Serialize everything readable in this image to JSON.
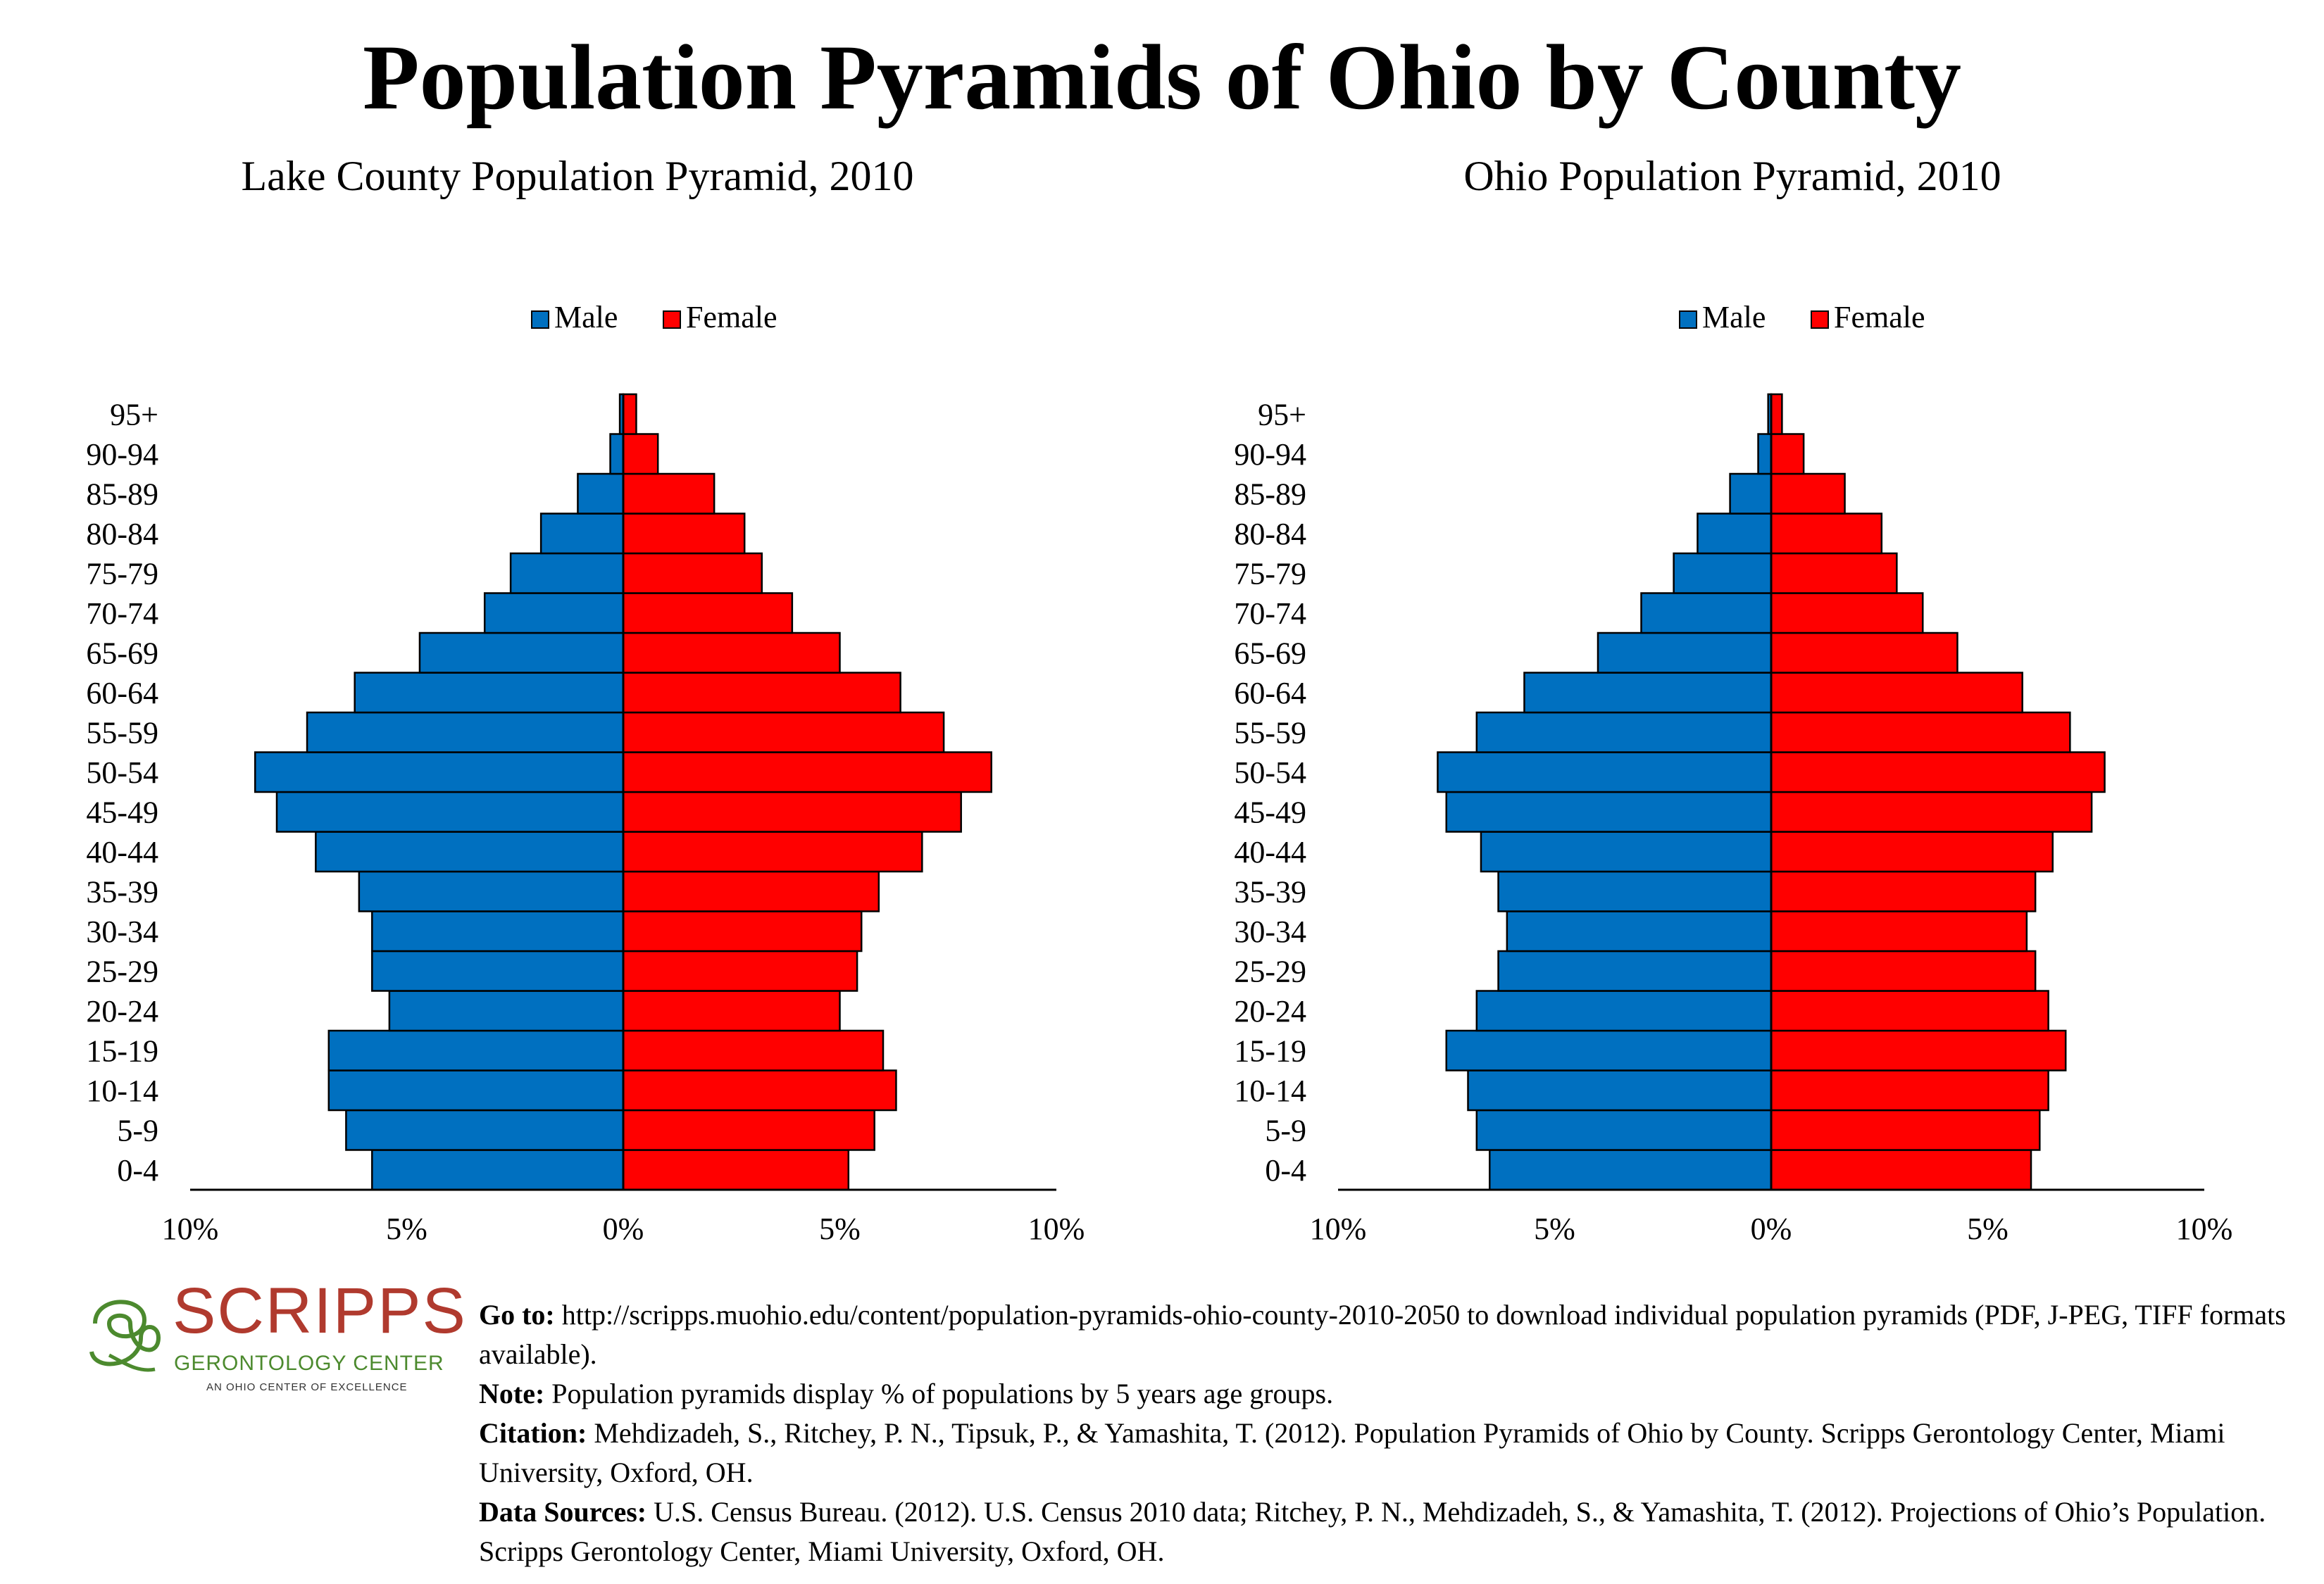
{
  "title": "Population Pyramids of Ohio by County",
  "colors": {
    "male": "#0070C0",
    "female": "#FF0000"
  },
  "chart_data": [
    {
      "type": "bar",
      "title": "Lake County Population Pyramid, 2010",
      "categories": [
        "0-4",
        "5-9",
        "10-14",
        "15-19",
        "20-24",
        "25-29",
        "30-34",
        "35-39",
        "40-44",
        "45-49",
        "50-54",
        "55-59",
        "60-64",
        "65-69",
        "70-74",
        "75-79",
        "80-84",
        "85-89",
        "90-94",
        "95+"
      ],
      "series": [
        {
          "name": "Male",
          "values": [
            5.8,
            6.4,
            6.8,
            6.8,
            5.4,
            5.8,
            5.8,
            6.1,
            7.1,
            8.0,
            8.5,
            7.3,
            6.2,
            4.7,
            3.2,
            2.6,
            1.9,
            1.05,
            0.3,
            0.08
          ]
        },
        {
          "name": "Female",
          "values": [
            5.2,
            5.8,
            6.3,
            6.0,
            5.0,
            5.4,
            5.5,
            5.9,
            6.9,
            7.8,
            8.5,
            7.4,
            6.4,
            5.0,
            3.9,
            3.2,
            2.8,
            2.1,
            0.8,
            0.3
          ]
        }
      ],
      "xlim": [
        -10,
        10
      ],
      "xticks": [
        "10%",
        "5%",
        "0%",
        "5%",
        "10%"
      ],
      "legend_position": "top-center"
    },
    {
      "type": "bar",
      "title": "Ohio Population Pyramid, 2010",
      "categories": [
        "0-4",
        "5-9",
        "10-14",
        "15-19",
        "20-24",
        "25-29",
        "30-34",
        "35-39",
        "40-44",
        "45-49",
        "50-54",
        "55-59",
        "60-64",
        "65-69",
        "70-74",
        "75-79",
        "80-84",
        "85-89",
        "90-94",
        "95+"
      ],
      "series": [
        {
          "name": "Male",
          "values": [
            6.5,
            6.8,
            7.0,
            7.5,
            6.8,
            6.3,
            6.1,
            6.3,
            6.7,
            7.5,
            7.7,
            6.8,
            5.7,
            4.0,
            3.0,
            2.25,
            1.7,
            0.95,
            0.3,
            0.07
          ]
        },
        {
          "name": "Female",
          "values": [
            6.0,
            6.2,
            6.4,
            6.8,
            6.4,
            6.1,
            5.9,
            6.1,
            6.5,
            7.4,
            7.7,
            6.9,
            5.8,
            4.3,
            3.5,
            2.9,
            2.55,
            1.7,
            0.75,
            0.25
          ]
        }
      ],
      "xlim": [
        -10,
        10
      ],
      "xticks": [
        "10%",
        "5%",
        "0%",
        "5%",
        "10%"
      ],
      "legend_position": "top-center"
    }
  ],
  "logo": {
    "name": "SCRIPPS",
    "subtitle": "GERONTOLOGY CENTER",
    "tagline": "AN OHIO CENTER OF EXCELLENCE",
    "colors": {
      "name": "#b03a2e",
      "subtitle": "#4c8a2e"
    }
  },
  "notes": {
    "goto_label": "Go to:",
    "goto_text": "http://scripps.muohio.edu/content/population-pyramids-ohio-county-2010-2050 to download individual population pyramids (PDF, J-PEG, TIFF formats available).",
    "note_label": "Note:",
    "note_text": "Population pyramids display % of populations by 5 years age groups.",
    "citation_label": "Citation:",
    "citation_text": "Mehdizadeh, S., Ritchey, P. N., Tipsuk, P., & Yamashita, T. (2012). Population Pyramids of Ohio by County. Scripps Gerontology Center, Miami University, Oxford, OH.",
    "sources_label": "Data Sources:",
    "sources_text": "U.S. Census Bureau. (2012). U.S. Census 2010 data; Ritchey, P. N., Mehdizadeh, S., & Yamashita, T. (2012). Projections of Ohio’s Population. Scripps Gerontology Center, Miami University, Oxford, OH."
  }
}
